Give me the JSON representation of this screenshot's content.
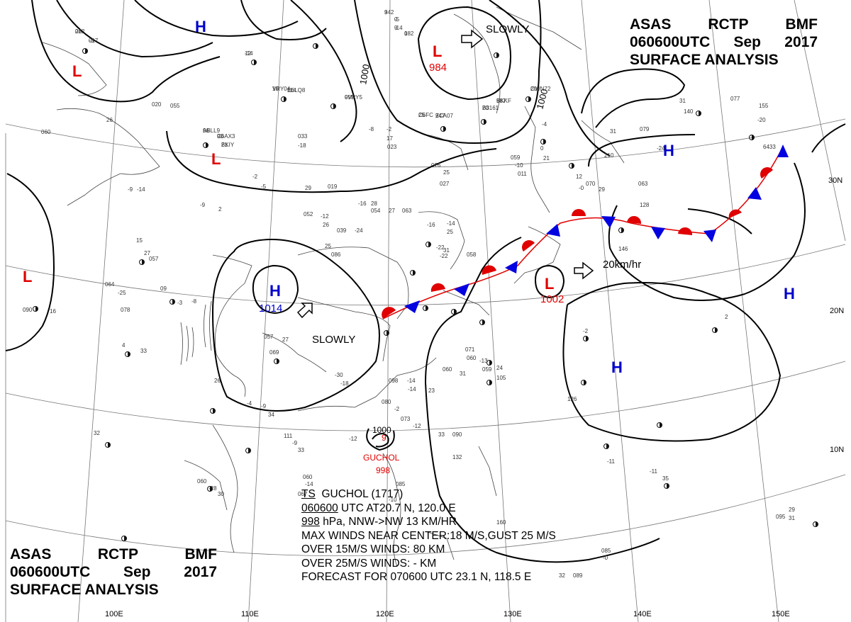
{
  "header": {
    "agency": "ASAS",
    "station": "RCTP",
    "office": "BMF",
    "time": "060600UTC",
    "month": "Sep",
    "year": "2017",
    "title": "SURFACE ANALYSIS"
  },
  "latitude_labels": [
    "30N",
    "20N",
    "10N"
  ],
  "longitude_labels": [
    "100E",
    "110E",
    "120E",
    "130E",
    "140E",
    "150E"
  ],
  "pressure_centers": [
    {
      "type": "H",
      "value": "",
      "color": "#0000cc"
    },
    {
      "type": "L",
      "value": "",
      "color": "#e00000"
    },
    {
      "type": "L",
      "value": "984",
      "color": "#e00000"
    },
    {
      "type": "L",
      "value": "",
      "color": "#e00000"
    },
    {
      "type": "H",
      "value": "",
      "color": "#0000cc"
    },
    {
      "type": "H",
      "value": "1014",
      "color": "#0000cc"
    },
    {
      "type": "L",
      "value": "",
      "color": "#e00000"
    },
    {
      "type": "L",
      "value": "1002",
      "color": "#e00000"
    },
    {
      "type": "H",
      "value": "",
      "color": "#0000cc"
    },
    {
      "type": "H",
      "value": "",
      "color": "#0000cc"
    }
  ],
  "isobar_labels": [
    "1000",
    "1000",
    "1000"
  ],
  "motion_labels": [
    "SLOWLY",
    "SLOWLY",
    "20km/hr"
  ],
  "storm": {
    "name": "GUCHOL",
    "pressure": "998",
    "pressure_marker": "9"
  },
  "bulletin": {
    "line1": {
      "prefix": "TS",
      "text": "GUCHOL (1717)"
    },
    "line2": {
      "time": "060600",
      "text": "UTC   AT20.7 N, 120.0 E"
    },
    "line3": {
      "pressure": "998",
      "text": "hPa, NNW->NW 13 KM/HR"
    },
    "line4": "MAX WINDS NEAR CENTER:18 M/S,GUST 25 M/S",
    "line5": "OVER 15M/S WINDS: 80 KM",
    "line6": "OVER 25M/S WINDS: - KM",
    "line7": "FORECAST FOR 070600 UTC 23.1 N, 118.5 E"
  },
  "station_reports": [
    "22",
    "017",
    "942",
    "0",
    "9",
    "1",
    "12",
    "10",
    "114",
    "055",
    "25",
    "947",
    "20",
    "987",
    "20",
    "96",
    "90",
    "21",
    "033",
    "-18",
    "020",
    "055",
    "26",
    "060",
    "076",
    "25",
    "027",
    "-8",
    "-2",
    "17",
    "023",
    "-4",
    "0",
    "21",
    "059",
    "-10",
    "011",
    "-2",
    "-5",
    "29",
    "019",
    "-16",
    "28",
    "054",
    "27",
    "063",
    "-16",
    "-14",
    "25",
    "052",
    "-12",
    "26",
    "039",
    "-24",
    "25",
    "086",
    "-22",
    "31",
    "058",
    "-22",
    "27",
    "064",
    "-25",
    "-8",
    "078",
    "-9",
    "-14",
    "-9",
    "2",
    "15",
    "057",
    "09",
    "-3",
    "090",
    "16",
    "4",
    "33",
    "057",
    "27",
    "069",
    "26",
    "071",
    "060",
    "-13",
    "23",
    "-30",
    "-18",
    "060",
    "31",
    "059",
    "24",
    "105",
    "-4",
    "-9",
    "34",
    "098",
    "-14",
    "-14",
    "080",
    "-2",
    "073",
    "-12",
    "33",
    "090",
    "-12",
    "32",
    "111",
    "-9",
    "33",
    "060",
    "-28",
    "30",
    "060",
    "-14",
    "067",
    "-10",
    "085",
    "-11",
    "35",
    "095",
    "29",
    "31",
    "063",
    "-2",
    "2",
    "31",
    "079",
    "-24",
    "31",
    "077",
    "-20",
    "12",
    "070",
    "29",
    "085",
    "-0",
    "32",
    "089",
    "-0",
    "128",
    "126",
    "-11",
    "132",
    "140",
    "155",
    "6433",
    "210",
    "160",
    "146",
    "062",
    "-3",
    "3",
    "-5",
    "-14",
    "082",
    "-14",
    "VRY04",
    "D6LQ8",
    "9VPY5",
    "C6FC",
    "ZCA07",
    "B3161",
    "BKKF",
    "OWN72",
    "ABLL9",
    "C6AX3",
    "BKIY"
  ],
  "colors": {
    "isobar": "#000000",
    "front_red": "#e00000",
    "front_blue": "#0000e0",
    "coast": "#444444",
    "grid": "#777777"
  }
}
